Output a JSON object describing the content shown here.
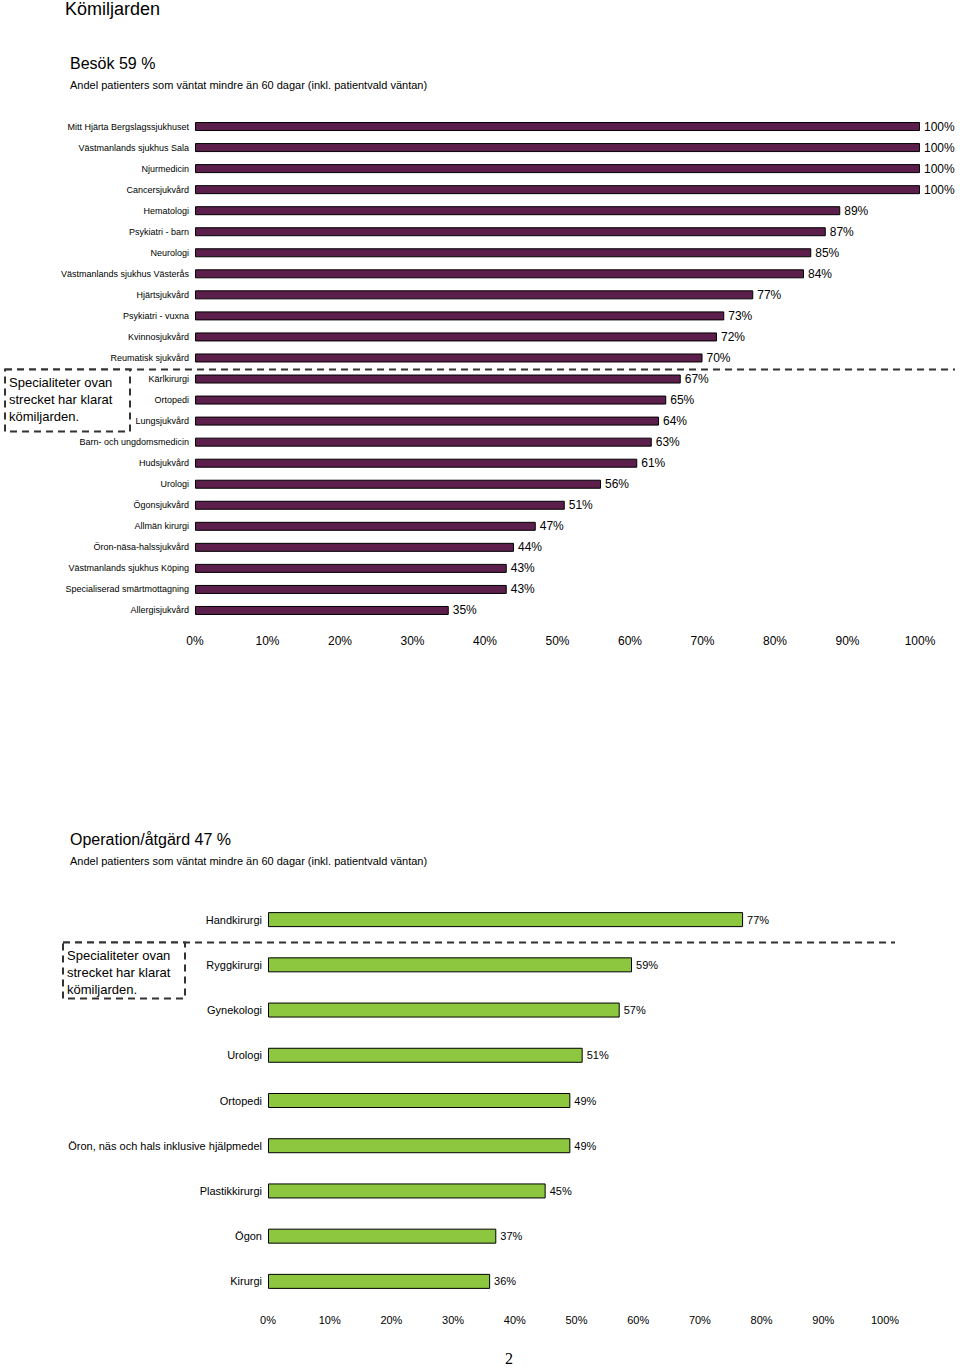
{
  "page": {
    "title": "Kömiljarden",
    "page_number": "2"
  },
  "chart_data": [
    {
      "type": "bar",
      "orientation": "horizontal",
      "title": "Besök 59 %",
      "subtitle": "Andel patienters som väntat mindre än 60 dagar (inkl. patientvald väntan)",
      "categories": [
        "Mitt Hjärta Bergslagssjukhuset",
        "Västmanlands sjukhus Sala",
        "Njurmedicin",
        "Cancersjukvård",
        "Hematologi",
        "Psykiatri - barn",
        "Neurologi",
        "Västmanlands sjukhus Västerås",
        "Hjärtsjukvård",
        "Psykiatri - vuxna",
        "Kvinnosjukvård",
        "Reumatisk sjukvård",
        "Kärlkirurgi",
        "Ortopedi",
        "Lungsjukvård",
        "Barn- och ungdomsmedicin",
        "Hudsjukvård",
        "Urologi",
        "Ögonsjukvård",
        "Allmän kirurgi",
        "Öron-näsa-halssjukvård",
        "Västmanlands sjukhus Köping",
        "Specialiserad smärtmottagning",
        "Allergisjukvård"
      ],
      "values": [
        100,
        100,
        100,
        100,
        89,
        87,
        85,
        84,
        77,
        73,
        72,
        70,
        67,
        65,
        64,
        63,
        61,
        56,
        51,
        47,
        44,
        43,
        43,
        35
      ],
      "value_labels": [
        "100%",
        "100%",
        "100%",
        "100%",
        "89%",
        "87%",
        "85%",
        "84%",
        "77%",
        "73%",
        "72%",
        "70%",
        "67%",
        "65%",
        "64%",
        "63%",
        "61%",
        "56%",
        "51%",
        "47%",
        "44%",
        "43%",
        "43%",
        "35%"
      ],
      "data_labels": true,
      "color": "#5c1e4b",
      "xlim": [
        0,
        100
      ],
      "xticks": [
        {
          "value": 0,
          "label": "0%"
        },
        {
          "value": 10,
          "label": "10%"
        },
        {
          "value": 20,
          "label": "20%"
        },
        {
          "value": 30,
          "label": "30%"
        },
        {
          "value": 40,
          "label": "40%"
        },
        {
          "value": 50,
          "label": "50%"
        },
        {
          "value": 60,
          "label": "60%"
        },
        {
          "value": 70,
          "label": "70%"
        },
        {
          "value": 80,
          "label": "80%"
        },
        {
          "value": 90,
          "label": "90%"
        },
        {
          "value": 100,
          "label": "100%"
        }
      ],
      "grid": false,
      "annotation": {
        "text": "Specialiteter ovan strecket har klarat kömiljarden.",
        "after": "Reumatisk sjukvård"
      }
    },
    {
      "type": "bar",
      "orientation": "horizontal",
      "title": "Operation/åtgärd 47 %",
      "subtitle": "Andel patienters som väntat mindre än 60 dagar (inkl. patientvald väntan)",
      "categories": [
        "Handkirurgi",
        "Ryggkirurgi",
        "Gynekologi",
        "Urologi",
        "Ortopedi",
        "Öron, näs och hals inklusive hjälpmedel",
        "Plastikkirurgi",
        "Ögon",
        "Kirurgi"
      ],
      "values": [
        77,
        59,
        57,
        51,
        49,
        49,
        45,
        37,
        36
      ],
      "value_labels": [
        "77%",
        "59%",
        "57%",
        "51%",
        "49%",
        "49%",
        "45%",
        "37%",
        "36%"
      ],
      "data_labels": true,
      "color": "#8dc63f",
      "xlim": [
        0,
        100
      ],
      "xticks": [
        {
          "value": 0,
          "label": "0%"
        },
        {
          "value": 10,
          "label": "10%"
        },
        {
          "value": 20,
          "label": "20%"
        },
        {
          "value": 30,
          "label": "30%"
        },
        {
          "value": 40,
          "label": "40%"
        },
        {
          "value": 50,
          "label": "50%"
        },
        {
          "value": 60,
          "label": "60%"
        },
        {
          "value": 70,
          "label": "70%"
        },
        {
          "value": 80,
          "label": "80%"
        },
        {
          "value": 90,
          "label": "90%"
        },
        {
          "value": 100,
          "label": "100%"
        }
      ],
      "grid": false,
      "annotation": {
        "text": "Specialiteter ovan strecket har klarat kömiljarden.",
        "after": "Handkirurgi"
      }
    }
  ]
}
